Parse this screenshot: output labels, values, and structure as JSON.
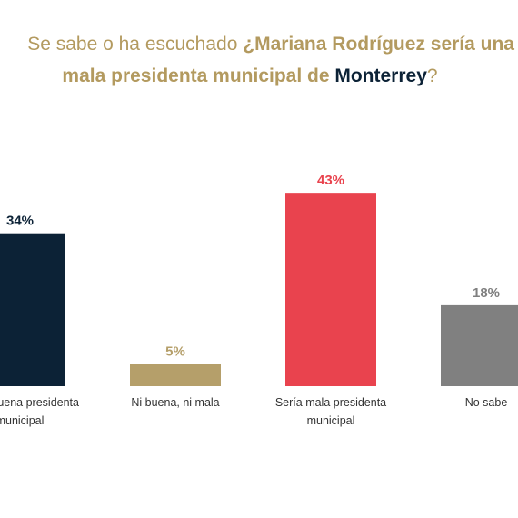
{
  "chart_data": {
    "type": "bar",
    "title_parts": [
      "Se sabe o ha escuchado",
      "¿Mariana Rodríguez sería una",
      "mala presidenta municipal de",
      "Monterrey",
      "?"
    ],
    "categories": [
      "Sería buena presidenta municipal",
      "Ni buena, ni mala",
      "Sería mala presidenta municipal",
      "No sabe"
    ],
    "values": [
      34,
      5,
      43,
      18
    ],
    "value_labels": [
      "34%",
      "5%",
      "43%",
      "18%"
    ],
    "colors": [
      "#0c2236",
      "#b59f6a",
      "#e9434e",
      "#808080"
    ],
    "title_color": "#b39a5f",
    "accent_color": "#0c2236"
  }
}
